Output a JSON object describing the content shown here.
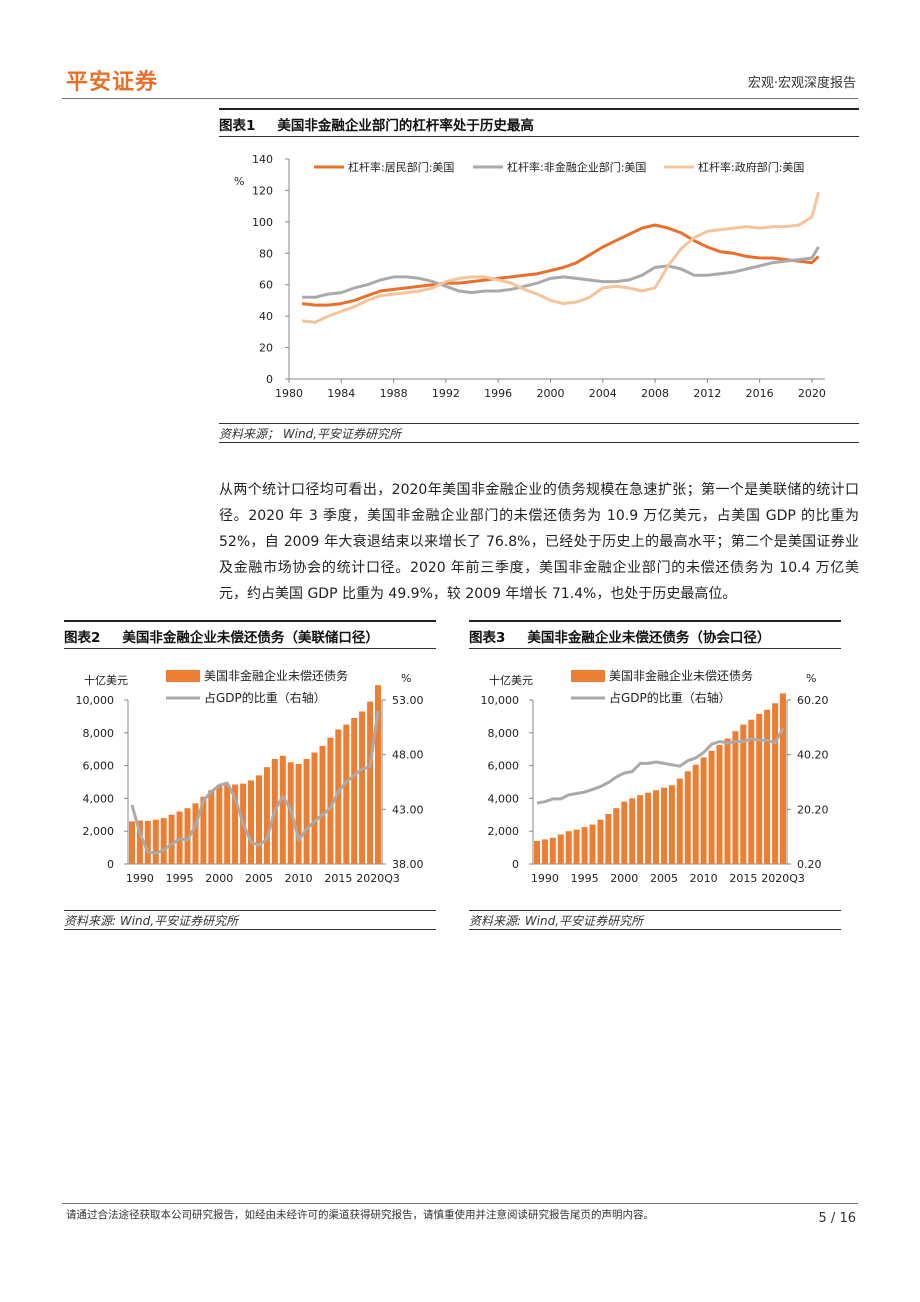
{
  "header": {
    "brand": "平安证券",
    "section": "宏观·宏观深度报告"
  },
  "figure1": {
    "label": "图表1",
    "title": "美国非金融企业部门的杠杆率处于历史最高",
    "source": "资料来源； Wind,平安证券研究所"
  },
  "paragraph": "从两个统计口径均可看出，2020年美国非金融企业的债务规模在急速扩张；第一个是美联储的统计口径。2020 年 3 季度，美国非金融企业部门的未偿还债务为 10.9 万亿美元，占美国 GDP 的比重为 52%，自 2009 年大衰退结束以来增长了 76.8%，已经处于历史上的最高水平；第二个是美国证券业及金融市场协会的统计口径。2020 年前三季度，美国非金融企业部门的未偿还债务为 10.4 万亿美元，约占美国 GDP 比重为 49.9%，较 2009 年增长 71.4%，也处于历史最高位。",
  "figure2": {
    "label": "图表2",
    "title": "美国非金融企业未偿还债务（美联储口径）",
    "source": "资料来源: Wind,平安证券研究所"
  },
  "figure3": {
    "label": "图表3",
    "title": "美国非金融企业未偿还债务（协会口径）",
    "source": "资料来源: Wind,平安证券研究所"
  },
  "footer": {
    "disclaimer": "请通过合法途径获取本公司研究报告，如经由未经许可的渠道获得研究报告，请慎重使用并注意阅读研究报告尾页的声明内容。",
    "page": "5 / 16"
  },
  "colors": {
    "orange": "#e8702a",
    "grey": "#aaaaaa",
    "peach": "#f5c49b",
    "bar": "#ed7d31"
  },
  "chart_data": [
    {
      "type": "line",
      "ylabel": "%",
      "ylim": [
        0,
        140
      ],
      "yticks": [
        "0",
        "20",
        "40",
        "60",
        "80",
        "100",
        "120",
        "140"
      ],
      "xlim": [
        1980,
        2021
      ],
      "xticks": [
        "1980",
        "1984",
        "1988",
        "1992",
        "1996",
        "2000",
        "2004",
        "2008",
        "2012",
        "2016",
        "2020"
      ],
      "x": [
        1981,
        1982,
        1983,
        1984,
        1985,
        1986,
        1987,
        1988,
        1989,
        1990,
        1991,
        1992,
        1993,
        1994,
        1995,
        1996,
        1997,
        1998,
        1999,
        2000,
        2001,
        2002,
        2003,
        2004,
        2005,
        2006,
        2007,
        2008,
        2009,
        2010,
        2011,
        2012,
        2013,
        2014,
        2015,
        2016,
        2017,
        2018,
        2019,
        2020,
        2020.5
      ],
      "series": [
        {
          "name": "杠杆率:居民部门:美国",
          "color": "#e8702a",
          "values": [
            48,
            47,
            47,
            48,
            50,
            53,
            56,
            57,
            58,
            59,
            60,
            61,
            61,
            62,
            63,
            64,
            65,
            66,
            67,
            69,
            71,
            74,
            79,
            84,
            88,
            92,
            96,
            98,
            96,
            93,
            88,
            84,
            81,
            80,
            78,
            77,
            77,
            76,
            75,
            74,
            78
          ]
        },
        {
          "name": "杠杆率:非金融企业部门:美国",
          "color": "#aaaaaa",
          "values": [
            52,
            52,
            54,
            55,
            58,
            60,
            63,
            65,
            65,
            64,
            62,
            59,
            56,
            55,
            56,
            56,
            57,
            59,
            61,
            64,
            65,
            64,
            63,
            62,
            62,
            63,
            66,
            71,
            72,
            70,
            66,
            66,
            67,
            68,
            70,
            72,
            74,
            75,
            76,
            77,
            84
          ]
        },
        {
          "name": "杠杆率:政府部门:美国",
          "color": "#f5c49b",
          "values": [
            37,
            36,
            40,
            43,
            46,
            50,
            53,
            54,
            55,
            56,
            58,
            62,
            64,
            65,
            65,
            63,
            61,
            57,
            54,
            50,
            48,
            49,
            52,
            58,
            59,
            58,
            56,
            58,
            72,
            83,
            90,
            94,
            95,
            96,
            97,
            96,
            97,
            97,
            98,
            103,
            119
          ]
        }
      ]
    },
    {
      "type": "bar",
      "title": "美国非金融企业未偿还债务（美联储口径）",
      "ylabel": "十亿美元",
      "y2label": "%",
      "ylim": [
        0,
        10000
      ],
      "yticks": [
        "0",
        "2,000",
        "4,000",
        "6,000",
        "8,000",
        "10,000"
      ],
      "y2lim": [
        38,
        53
      ],
      "y2ticks": [
        "38.00",
        "43.00",
        "48.00",
        "53.00"
      ],
      "xticks": [
        "1990",
        "1995",
        "2000",
        "2005",
        "2010",
        "2015",
        "2020Q3"
      ],
      "categories": [
        "1989",
        "1990",
        "1991",
        "1992",
        "1993",
        "1994",
        "1995",
        "1996",
        "1997",
        "1998",
        "1999",
        "2000",
        "2001",
        "2002",
        "2003",
        "2004",
        "2005",
        "2006",
        "2007",
        "2008",
        "2009",
        "2010",
        "2011",
        "2012",
        "2013",
        "2014",
        "2015",
        "2016",
        "2017",
        "2018",
        "2019",
        "2020Q3"
      ],
      "series": [
        {
          "name": "美国非金融企业未偿还债务",
          "color": "#ed7d31",
          "values": [
            2600,
            2650,
            2620,
            2700,
            2800,
            3000,
            3200,
            3400,
            3700,
            4100,
            4500,
            4800,
            4850,
            4850,
            4900,
            5100,
            5400,
            5900,
            6400,
            6600,
            6200,
            6100,
            6400,
            6800,
            7200,
            7700,
            8200,
            8500,
            8900,
            9300,
            9900,
            10900
          ]
        },
        {
          "name": "占GDP的比重（右轴）",
          "color": "#aaaaaa",
          "axis": "right",
          "values": [
            43.4,
            40.8,
            39.1,
            39.0,
            39.3,
            39.8,
            40.3,
            40.2,
            41.5,
            43.8,
            44.6,
            45.2,
            45.4,
            44.0,
            41.7,
            40.0,
            39.7,
            40.3,
            42.9,
            44.2,
            43.0,
            40.2,
            41.2,
            41.9,
            42.5,
            43.1,
            44.6,
            45.5,
            46.1,
            46.7,
            46.9,
            52.0
          ]
        }
      ]
    },
    {
      "type": "bar",
      "title": "美国非金融企业未偿还债务（协会口径）",
      "ylabel": "十亿美元",
      "y2label": "%",
      "ylim": [
        0,
        10000
      ],
      "yticks": [
        "0",
        "2,000",
        "4,000",
        "6,000",
        "8,000",
        "10,000"
      ],
      "y2lim": [
        0.2,
        60.2
      ],
      "y2ticks": [
        "0.20",
        "20.20",
        "40.20",
        "60.20"
      ],
      "xticks": [
        "1990",
        "1995",
        "2000",
        "2005",
        "2010",
        "2015",
        "2020Q3"
      ],
      "categories": [
        "1989",
        "1990",
        "1991",
        "1992",
        "1993",
        "1994",
        "1995",
        "1996",
        "1997",
        "1998",
        "1999",
        "2000",
        "2001",
        "2002",
        "2003",
        "2004",
        "2005",
        "2006",
        "2007",
        "2008",
        "2009",
        "2010",
        "2011",
        "2012",
        "2013",
        "2014",
        "2015",
        "2016",
        "2017",
        "2018",
        "2019",
        "2020Q3"
      ],
      "series": [
        {
          "name": "美国非金融企业未偿还债务",
          "color": "#ed7d31",
          "values": [
            1400,
            1500,
            1600,
            1800,
            2000,
            2100,
            2250,
            2400,
            2700,
            3050,
            3400,
            3800,
            4000,
            4200,
            4350,
            4500,
            4650,
            4800,
            5200,
            5650,
            6050,
            6500,
            6900,
            7250,
            7650,
            8100,
            8500,
            8800,
            9150,
            9400,
            9800,
            10400
          ]
        },
        {
          "name": "占GDP的比重（右轴）",
          "color": "#aaaaaa",
          "values": [
            22.5,
            23.0,
            24.0,
            24.0,
            25.5,
            26.0,
            26.5,
            27.5,
            28.5,
            30.0,
            32.0,
            33.5,
            34.0,
            37.0,
            37.0,
            37.5,
            37.0,
            36.5,
            36.0,
            38.0,
            39.0,
            41.0,
            44.0,
            45.0,
            44.5,
            45.0,
            45.0,
            46.0,
            45.5,
            45.5,
            44.5,
            49.9
          ]
        }
      ]
    }
  ]
}
